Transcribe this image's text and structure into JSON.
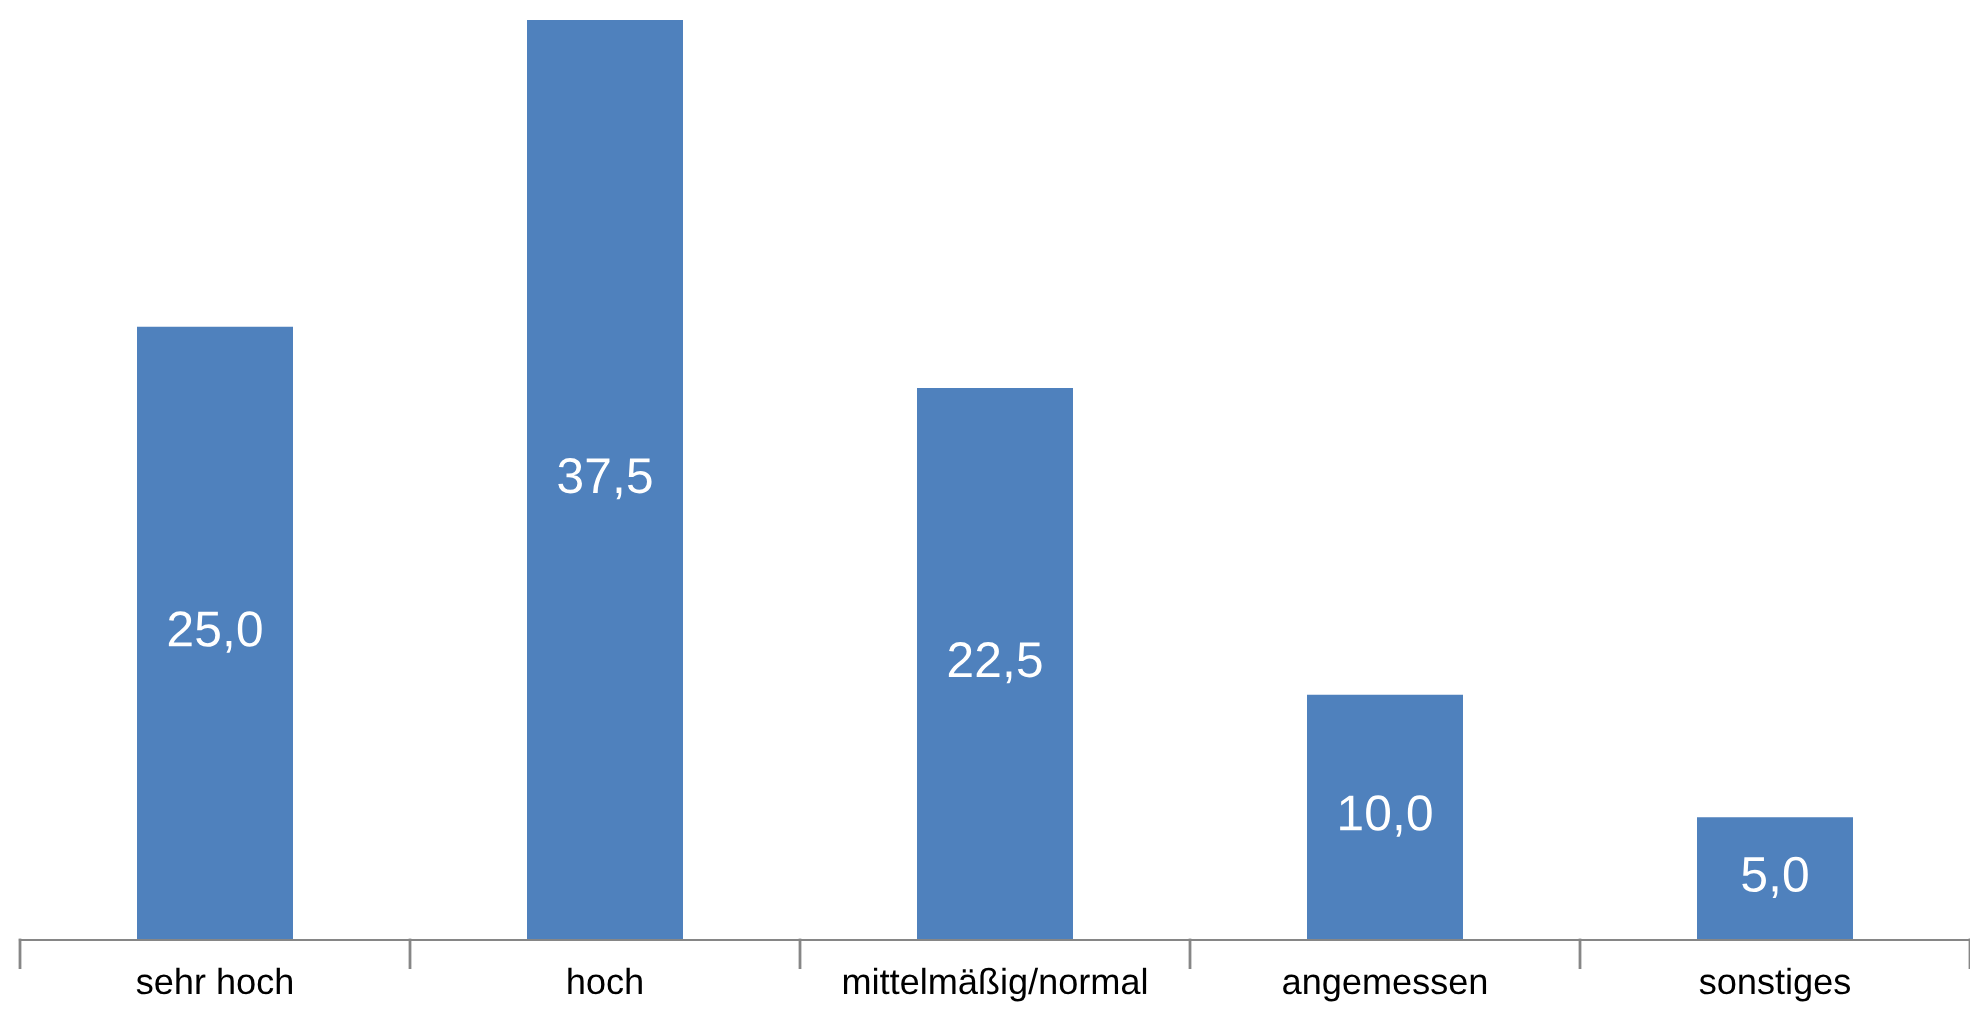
{
  "chart_data": {
    "type": "bar",
    "categories": [
      "sehr hoch",
      "hoch",
      "mittelmäßig/normal",
      "angemessen",
      "sonstiges"
    ],
    "values": [
      25.0,
      37.5,
      22.5,
      10.0,
      5.0
    ],
    "value_labels": [
      "25,0",
      "37,5",
      "22,5",
      "10,0",
      "5,0"
    ],
    "color": "#4f81bd"
  }
}
